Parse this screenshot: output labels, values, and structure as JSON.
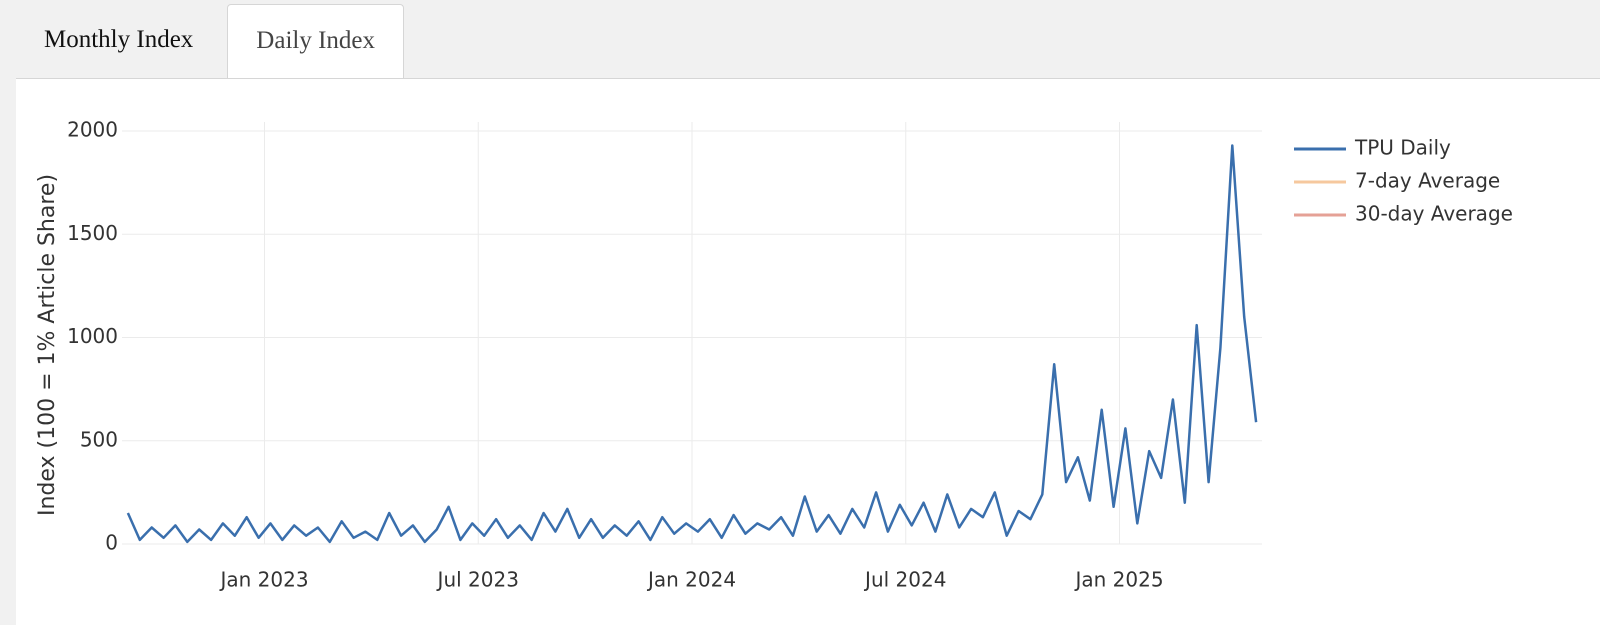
{
  "tabs": [
    "Monthly Index",
    "Daily Index"
  ],
  "chart_data": {
    "type": "line",
    "y_label": "Index (100 = 1% Article Share)",
    "x": [
      "2022-09",
      "2022-09",
      "2022-09",
      "2022-10",
      "2022-10",
      "2022-10",
      "2022-11",
      "2022-11",
      "2022-11",
      "2022-12",
      "2022-12",
      "2022-12",
      "2023-01",
      "2023-01",
      "2023-01",
      "2023-02",
      "2023-02",
      "2023-02",
      "2023-03",
      "2023-03",
      "2023-03",
      "2023-04",
      "2023-04",
      "2023-04",
      "2023-05",
      "2023-05",
      "2023-05",
      "2023-06",
      "2023-06",
      "2023-06",
      "2023-07",
      "2023-07",
      "2023-07",
      "2023-08",
      "2023-08",
      "2023-08",
      "2023-09",
      "2023-09",
      "2023-09",
      "2023-10",
      "2023-10",
      "2023-10",
      "2023-11",
      "2023-11",
      "2023-11",
      "2023-12",
      "2023-12",
      "2023-12",
      "2024-01",
      "2024-01",
      "2024-01",
      "2024-02",
      "2024-02",
      "2024-02",
      "2024-03",
      "2024-03",
      "2024-03",
      "2024-04",
      "2024-04",
      "2024-04",
      "2024-05",
      "2024-05",
      "2024-05",
      "2024-06",
      "2024-06",
      "2024-06",
      "2024-07",
      "2024-07",
      "2024-07",
      "2024-08",
      "2024-08",
      "2024-08",
      "2024-09",
      "2024-09",
      "2024-09",
      "2024-10",
      "2024-10",
      "2024-10",
      "2024-11",
      "2024-11",
      "2024-11",
      "2024-12",
      "2024-12",
      "2024-12",
      "2025-01",
      "2025-01",
      "2025-01",
      "2025-02",
      "2025-02",
      "2025-02",
      "2025-03",
      "2025-03",
      "2025-03",
      "2025-04",
      "2025-04",
      "2025-04"
    ],
    "series": [
      {
        "name": "TPU Daily",
        "color": "#3a6fad",
        "visible": true,
        "values": [
          150,
          20,
          80,
          30,
          90,
          10,
          70,
          20,
          100,
          40,
          130,
          30,
          100,
          20,
          90,
          40,
          80,
          10,
          110,
          30,
          60,
          20,
          150,
          40,
          90,
          10,
          70,
          180,
          20,
          100,
          40,
          120,
          30,
          90,
          20,
          150,
          60,
          170,
          30,
          120,
          30,
          90,
          40,
          110,
          20,
          130,
          50,
          100,
          60,
          120,
          30,
          140,
          50,
          100,
          70,
          130,
          40,
          230,
          60,
          140,
          50,
          170,
          80,
          250,
          60,
          190,
          90,
          200,
          60,
          240,
          80,
          170,
          130,
          250,
          40,
          160,
          120,
          240,
          870,
          300,
          420,
          210,
          650,
          180,
          560,
          100,
          450,
          320,
          700,
          200,
          1060,
          300,
          950,
          1930,
          1100,
          590
        ]
      },
      {
        "name": "7-day Average",
        "color": "#f5bb87",
        "visible": false
      },
      {
        "name": "30-day Average",
        "color": "#df8a7c",
        "visible": false
      }
    ],
    "xlim": [
      "2022-09",
      "2025-05"
    ],
    "xticks": [
      {
        "value": "2023-01",
        "label": "Jan 2023"
      },
      {
        "value": "2023-07",
        "label": "Jul 2023"
      },
      {
        "value": "2024-01",
        "label": "Jan 2024"
      },
      {
        "value": "2024-07",
        "label": "Jul 2024"
      },
      {
        "value": "2025-01",
        "label": "Jan 2025"
      }
    ],
    "ylim": [
      0,
      2000
    ],
    "yticks": [
      0,
      500,
      1000,
      1500,
      2000
    ],
    "grid": true,
    "legend": "right"
  }
}
